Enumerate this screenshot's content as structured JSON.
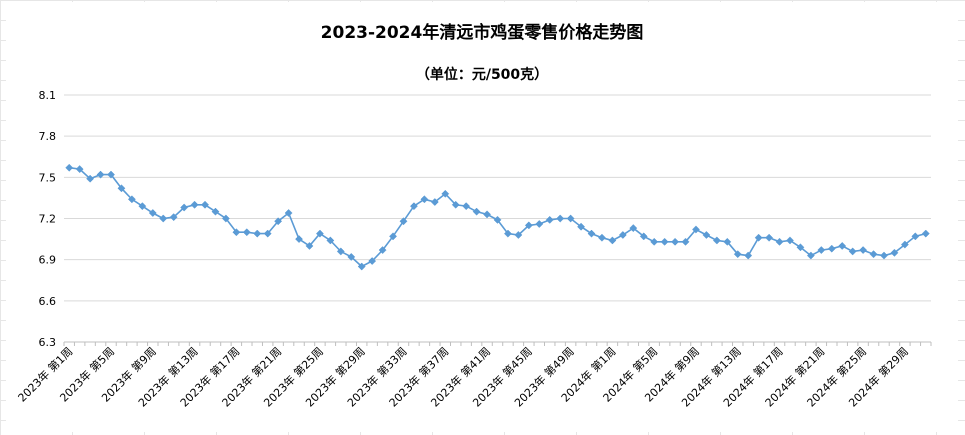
{
  "chart_data": {
    "type": "line",
    "title": "2023-2024年清远市鸡蛋零售价格走势图",
    "subtitle": "（单位：元/500克）",
    "xlabel": "",
    "ylabel": "",
    "ylim": [
      6.3,
      8.1
    ],
    "yticks": [
      "6.3",
      "6.6",
      "6.9",
      "7.2",
      "7.5",
      "7.8",
      "8.1"
    ],
    "grid": true,
    "legend": "none",
    "x_tick_labels": [
      "2023年 第1周",
      "2023年 第5周",
      "2023年 第9周",
      "2023年 第13周",
      "2023年 第17周",
      "2023年 第21周",
      "2023年 第25周",
      "2023年 第29周",
      "2023年 第33周",
      "2023年 第37周",
      "2023年 第41周",
      "2023年 第45周",
      "2023年 第49周",
      "2024年 第1周",
      "2024年 第5周",
      "2024年 第9周",
      "2024年 第13周",
      "2024年 第17周",
      "2024年 第21周",
      "2024年 第25周",
      "2024年 第29周"
    ],
    "x_tick_every": 4,
    "color": "#5b9bd5",
    "values": [
      7.57,
      7.56,
      7.49,
      7.52,
      7.52,
      7.42,
      7.34,
      7.29,
      7.24,
      7.2,
      7.21,
      7.28,
      7.3,
      7.3,
      7.25,
      7.2,
      7.1,
      7.1,
      7.09,
      7.09,
      7.18,
      7.24,
      7.05,
      7.0,
      7.09,
      7.04,
      6.96,
      6.92,
      6.85,
      6.89,
      6.97,
      7.07,
      7.18,
      7.29,
      7.34,
      7.32,
      7.38,
      7.3,
      7.29,
      7.25,
      7.23,
      7.19,
      7.09,
      7.08,
      7.15,
      7.16,
      7.19,
      7.2,
      7.2,
      7.14,
      7.09,
      7.06,
      7.04,
      7.08,
      7.13,
      7.07,
      7.03,
      7.03,
      7.03,
      7.03,
      7.12,
      7.08,
      7.04,
      7.03,
      6.94,
      6.93,
      7.06,
      7.06,
      7.03,
      7.04,
      6.99,
      6.93,
      6.97,
      6.98,
      7.0,
      6.96,
      6.97,
      6.94,
      6.93,
      6.95,
      7.01,
      7.07,
      7.09
    ]
  }
}
